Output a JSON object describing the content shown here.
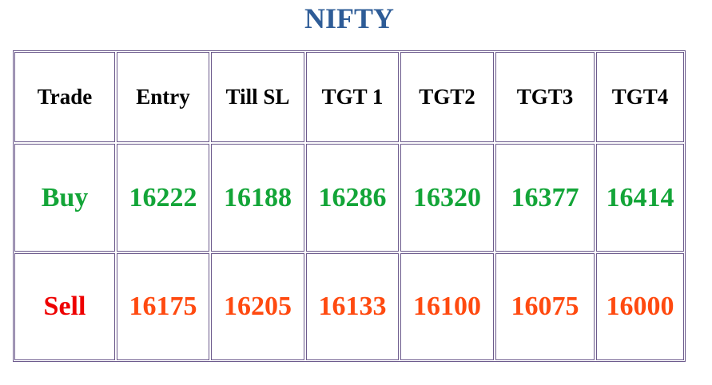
{
  "header": {
    "title": "NIFTY"
  },
  "table": {
    "columns": [
      "Trade",
      "Entry",
      "Till SL",
      "TGT 1",
      "TGT2",
      "TGT3",
      "TGT4"
    ],
    "rows": [
      [
        "Buy",
        16222,
        16188,
        16286,
        16320,
        16377,
        16414
      ],
      [
        "Sell",
        16175,
        16205,
        16133,
        16100,
        16075,
        16000
      ]
    ]
  }
}
